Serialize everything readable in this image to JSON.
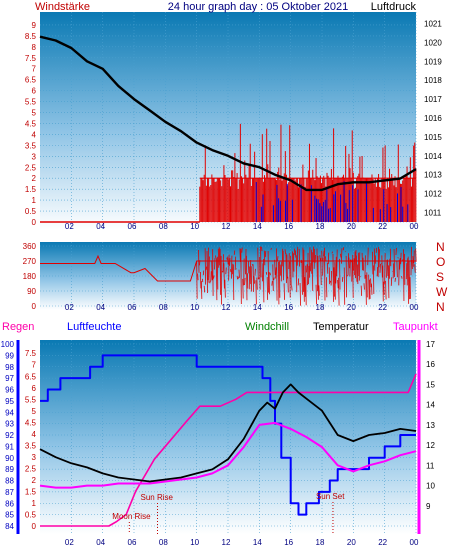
{
  "header": {
    "left": "Windstärke",
    "title": "24 hour graph day : 05 Oktober 2021",
    "right": "Luftdruck"
  },
  "legend": {
    "regen": "Regen",
    "luftfeuchte": "Luftfeuchte",
    "windchill": "Windchill",
    "temperatur": "Temperatur",
    "taupunkt": "Taupunkt"
  },
  "annotations": {
    "sun_rise": "Sun Rise",
    "sun_set": "Sun Set",
    "moon_rise": "Moon Rise"
  },
  "colors": {
    "windspeed": "#e00000",
    "gust": "#0000e0",
    "pressure": "#000000",
    "direction": "#e00000",
    "temperature": "#000000",
    "humidity": "#0000ff",
    "dewpoint": "#ff00ff",
    "rain": "#ff00aa",
    "windchill": "#008000",
    "axis_left": "#c00000",
    "axis_right": "#000000",
    "axis_x": "#000080"
  },
  "chart_data": [
    {
      "type": "line",
      "panel": "wind-pressure",
      "x_ticks": [
        "02",
        "04",
        "06",
        "08",
        "10",
        "12",
        "14",
        "16",
        "18",
        "20",
        "22",
        "00"
      ],
      "left_axis": {
        "label": "Windstärke",
        "ticks": [
          "0",
          "0.5",
          "1",
          "1.5",
          "2",
          "2.5",
          "3",
          "3.5",
          "4",
          "4.5",
          "5",
          "5.5",
          "6",
          "6.5",
          "7",
          "7.5",
          "8",
          "8.5",
          "9"
        ],
        "ylim": [
          0,
          9.5
        ]
      },
      "right_axis": {
        "label": "Luftdruck",
        "ticks": [
          "1011",
          "1012",
          "1013",
          "1014",
          "1015",
          "1016",
          "1017",
          "1018",
          "1019",
          "1020",
          "1021"
        ],
        "ylim": [
          1010.5,
          1021.5
        ]
      },
      "series": [
        {
          "name": "Luftdruck",
          "axis": "right",
          "x": [
            0,
            1,
            2,
            3,
            4,
            5,
            6,
            7,
            8,
            9,
            10,
            11,
            12,
            13,
            14,
            15,
            16,
            17,
            18,
            19,
            20,
            21,
            22,
            23,
            24
          ],
          "y": [
            1020.3,
            1020.1,
            1019.7,
            1019.0,
            1018.6,
            1017.7,
            1017.0,
            1016.4,
            1015.8,
            1015.3,
            1014.7,
            1014.3,
            1014.0,
            1013.6,
            1013.4,
            1013.0,
            1012.7,
            1012.2,
            1012.2,
            1012.5,
            1012.6,
            1012.6,
            1012.7,
            1012.8,
            1013.3
          ]
        }
      ]
    },
    {
      "type": "line",
      "panel": "wind-direction",
      "x_ticks": [
        "02",
        "04",
        "06",
        "08",
        "10",
        "12",
        "14",
        "16",
        "18",
        "20",
        "22",
        "00"
      ],
      "left_axis": {
        "ticks": [
          "0",
          "90",
          "180",
          "270",
          "360"
        ],
        "ylim": [
          0,
          360
        ]
      },
      "right_axis": {
        "ticks": [
          "N",
          "W",
          "S",
          "O",
          "N"
        ]
      },
      "series": [
        {
          "name": "Windrichtung",
          "axis": "left",
          "x": [
            0,
            3.5,
            3.7,
            3.9,
            4.8,
            5.8,
            6.0,
            6.7,
            7.5,
            8.5,
            9.6,
            10.0,
            24.0
          ],
          "y": [
            255,
            255,
            300,
            255,
            255,
            200,
            200,
            225,
            150,
            150,
            150,
            270,
            270
          ]
        }
      ]
    },
    {
      "type": "line",
      "panel": "temperature-humidity",
      "x_ticks": [
        "02",
        "04",
        "06",
        "08",
        "10",
        "12",
        "14",
        "16",
        "18",
        "20",
        "22",
        "00"
      ],
      "left_axis_rain": {
        "ticks": [
          "0",
          "0.5",
          "1",
          "1.5",
          "2",
          "2.5",
          "3",
          "3.5",
          "4",
          "4.5",
          "5",
          "5.5",
          "6",
          "6.5",
          "7",
          "7.5"
        ],
        "ylim": [
          0,
          7.9
        ]
      },
      "left_axis_humidity": {
        "ticks": [
          "84",
          "85",
          "86",
          "87",
          "88",
          "89",
          "90",
          "91",
          "92",
          "93",
          "94",
          "95",
          "96",
          "97",
          "98",
          "99",
          "100"
        ],
        "ylim": [
          84,
          100
        ]
      },
      "right_axis": {
        "ticks": [
          "9",
          "10",
          "11",
          "12",
          "13",
          "14",
          "15",
          "16",
          "17"
        ],
        "ylim": [
          8,
          17
        ]
      },
      "series": [
        {
          "name": "Temperatur",
          "axis": "right",
          "x": [
            0,
            1,
            2,
            3,
            4,
            5,
            6,
            7,
            8,
            9,
            10,
            11,
            12,
            13,
            14,
            14.5,
            15,
            15.5,
            16,
            16.5,
            17,
            18,
            19,
            20,
            21,
            22,
            23,
            24
          ],
          "y": [
            11.8,
            11.4,
            11.1,
            10.9,
            10.6,
            10.4,
            10.3,
            10.2,
            10.3,
            10.4,
            10.6,
            10.8,
            11.3,
            12.3,
            13.7,
            14.1,
            13.8,
            14.6,
            15.0,
            14.6,
            14.3,
            13.7,
            12.5,
            12.2,
            12.5,
            12.6,
            12.8,
            12.7
          ]
        },
        {
          "name": "Taupunkt",
          "axis": "right",
          "x": [
            0,
            1,
            2,
            3,
            4,
            5,
            6,
            7,
            8,
            9,
            10,
            11,
            12,
            13,
            14,
            15,
            16,
            17,
            18,
            19,
            20,
            21,
            22,
            23,
            24
          ],
          "y": [
            10.0,
            9.9,
            9.9,
            10.0,
            10.0,
            10.1,
            10.1,
            10.1,
            10.2,
            10.3,
            10.4,
            10.6,
            11.0,
            11.9,
            13.0,
            13.1,
            12.8,
            12.4,
            11.9,
            11.0,
            10.7,
            11.0,
            11.2,
            11.5,
            11.7
          ]
        },
        {
          "name": "Luftfeuchte",
          "axis": "humidity",
          "x": [
            0,
            0.5,
            1.3,
            2.0,
            3.2,
            4.0,
            4.9,
            6.0,
            7.0,
            8.0,
            9.0,
            10.0,
            11.0,
            12.0,
            13.0,
            13.6,
            14.2,
            14.7,
            15.0,
            15.4,
            16.0,
            16.5,
            17.0,
            17.8,
            18.5,
            19.0,
            19.8,
            21.0,
            22.0,
            23.0,
            24.0
          ],
          "y": [
            95,
            96,
            97,
            97,
            98,
            99,
            99,
            99,
            99,
            99,
            99,
            98,
            98,
            98,
            98,
            98,
            97,
            95,
            93,
            90,
            86,
            85,
            86,
            87,
            88,
            89,
            89,
            90,
            91,
            92,
            92
          ]
        },
        {
          "name": "Regen",
          "axis": "rain",
          "x": [
            0,
            4.4,
            4.9,
            5.5,
            6.1,
            6.7,
            7.3,
            8.3,
            9.3,
            10.2,
            11.5,
            12.5,
            13.2,
            14.5,
            16.5,
            18.5,
            20.5,
            22.5,
            23.5,
            24.0
          ],
          "y": [
            0.0,
            0.0,
            0.2,
            0.5,
            1.5,
            2.2,
            2.9,
            3.7,
            4.5,
            5.2,
            5.2,
            5.5,
            5.8,
            5.8,
            5.8,
            5.8,
            5.8,
            5.8,
            5.8,
            6.6
          ]
        }
      ],
      "annotations": [
        {
          "label": "Sun Rise",
          "x": 7.5
        },
        {
          "label": "Sun Set",
          "x": 18.7
        },
        {
          "label": "Moon Rise",
          "x": 5.7
        }
      ]
    }
  ]
}
